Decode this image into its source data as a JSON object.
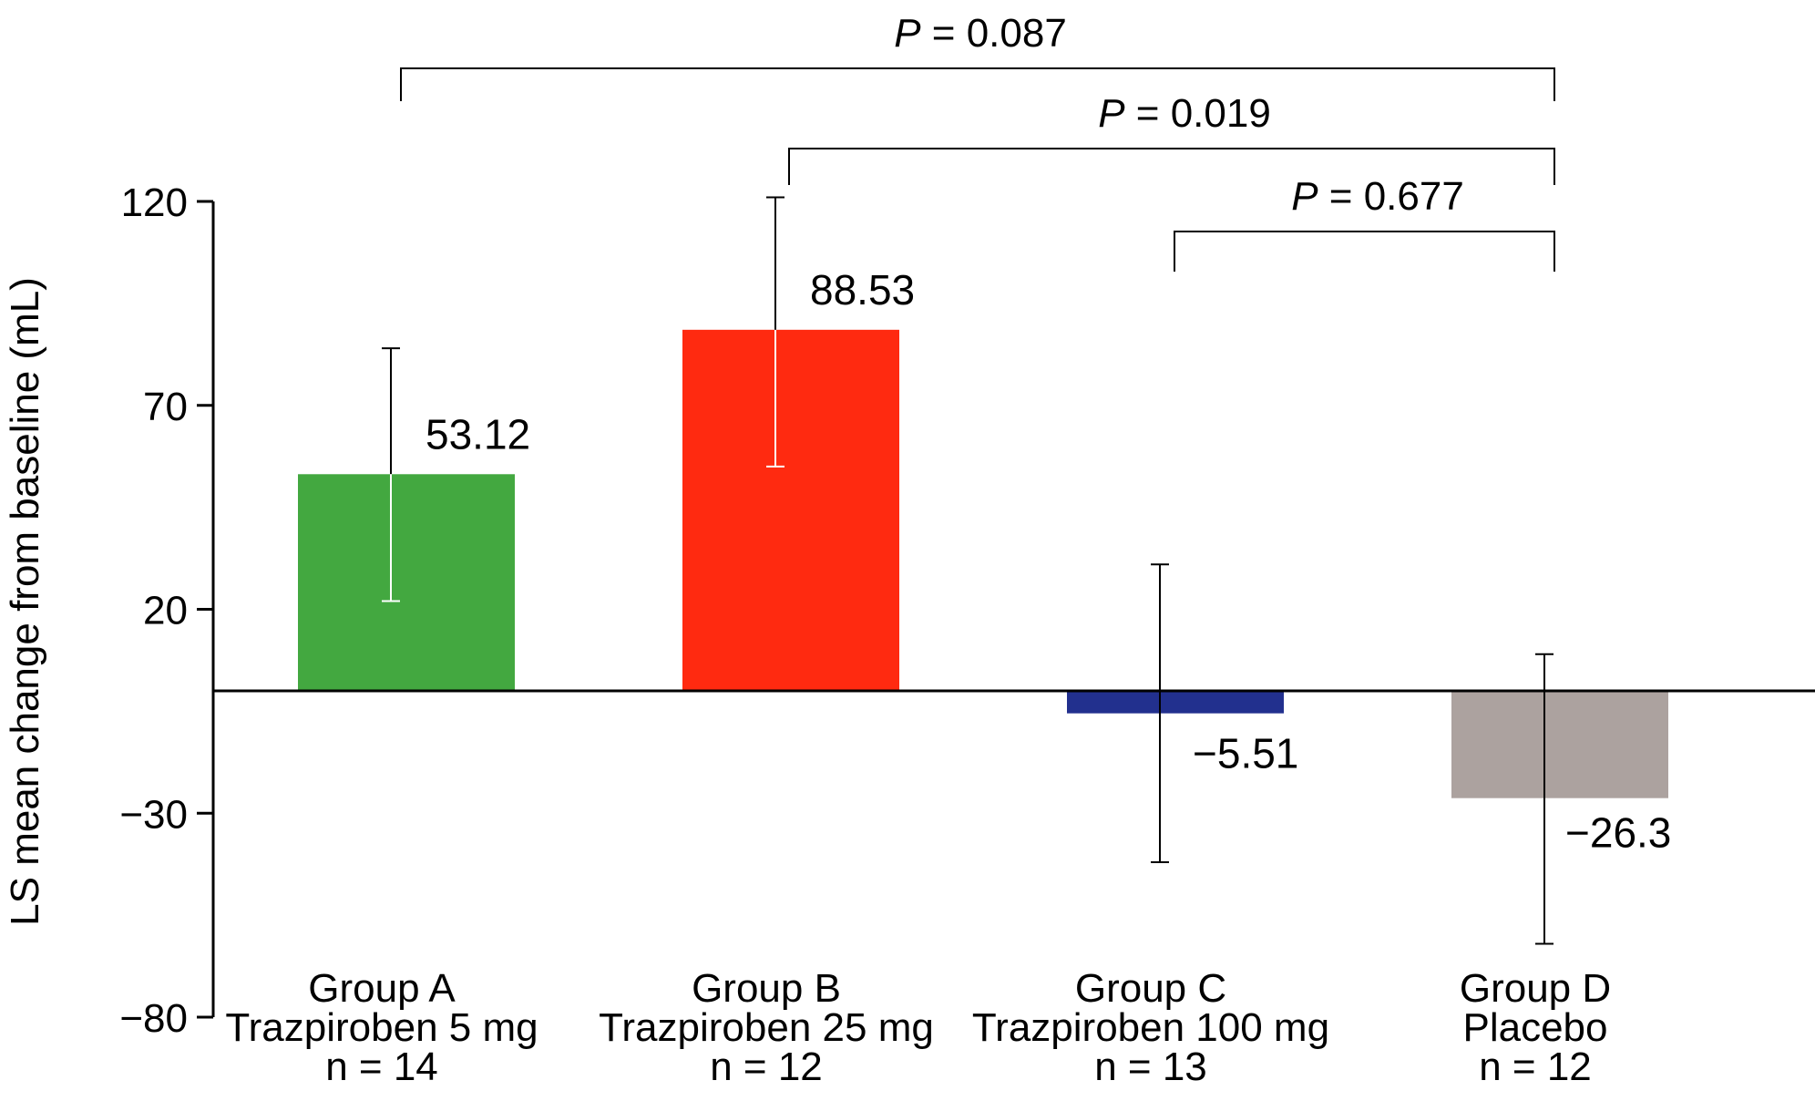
{
  "chart_data": {
    "type": "bar",
    "ylabel": "LS mean change from baseline (mL)",
    "ylim": [
      -80,
      120
    ],
    "yticks": [
      -80,
      -30,
      20,
      70,
      120
    ],
    "ytick_labels": [
      "−80",
      "−30",
      "20",
      "70",
      "120"
    ],
    "grid": false,
    "categories": [
      {
        "lines": [
          "Group A",
          "Trazpiroben 5 mg",
          "n = 14"
        ]
      },
      {
        "lines": [
          "Group B",
          "Trazpiroben 25 mg",
          "n = 12"
        ]
      },
      {
        "lines": [
          "Group C",
          "Trazpiroben 100 mg",
          "n = 13"
        ]
      },
      {
        "lines": [
          "Group D",
          "Placebo",
          "n = 12"
        ]
      }
    ],
    "values": [
      53.12,
      88.53,
      -5.51,
      -26.3
    ],
    "value_labels": [
      "53.12",
      "88.53",
      "−5.51",
      "−26.3"
    ],
    "error_low": [
      22,
      55,
      -42,
      -62
    ],
    "error_high": [
      84,
      121,
      31,
      9
    ],
    "colors": [
      "#43a840",
      "#ff2a10",
      "#22308e",
      "#aca29f"
    ],
    "comparisons": [
      {
        "from": 0,
        "to": 3,
        "p_prefix": "P",
        "p_text": " = 0.087"
      },
      {
        "from": 1,
        "to": 3,
        "p_prefix": "P",
        "p_text": " = 0.019"
      },
      {
        "from": 2,
        "to": 3,
        "p_prefix": "P",
        "p_text": " = 0.677"
      }
    ]
  }
}
